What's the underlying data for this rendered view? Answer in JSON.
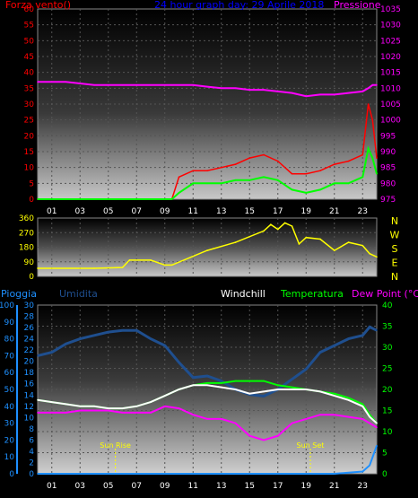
{
  "colors": {
    "wind": "#ff0000",
    "gust": "#00ff00",
    "pressure": "#ff00ff",
    "direction": "#ffff00",
    "rain": "#1e90ff",
    "humidity": "#1f4f8f",
    "windchill": "#ffffff",
    "temperature": "#00ff00",
    "dewpoint": "#ff00ff",
    "title": "#0000ff",
    "event": "#ffff00"
  },
  "chart_data": [
    {
      "type": "line",
      "title": "24 hour graph day:  29 Aprile 2018",
      "left_axis_label": "Forza vento()",
      "right_axis_label": "Pressione",
      "x_ticks": [
        "01",
        "03",
        "05",
        "07",
        "09",
        "11",
        "13",
        "15",
        "17",
        "19",
        "21",
        "23"
      ],
      "x": [
        0,
        2,
        4,
        6,
        8,
        9.5,
        10,
        11,
        12,
        13,
        14,
        15,
        16,
        17,
        18,
        19,
        20,
        21,
        22,
        23,
        23.4,
        23.7,
        24
      ],
      "left_ticks": [
        "0",
        "5",
        "10",
        "15",
        "20",
        "25",
        "30",
        "35",
        "40",
        "45",
        "50",
        "55",
        "60"
      ],
      "ylim_left": [
        0,
        60
      ],
      "right_ticks": [
        "975",
        "980",
        "985",
        "990",
        "995",
        "1000",
        "1005",
        "1010",
        "1015",
        "1020",
        "1025",
        "1030",
        "1035"
      ],
      "ylim_right": [
        975,
        1035
      ],
      "series": [
        {
          "key": "wind",
          "values": [
            0,
            0,
            0,
            0,
            0,
            0,
            7,
            9,
            9,
            10,
            11,
            13,
            14,
            12,
            8,
            8,
            9,
            11,
            12,
            14,
            30,
            25,
            13
          ]
        },
        {
          "key": "gust",
          "values": [
            0,
            0,
            0,
            0,
            0,
            0,
            2,
            5,
            5,
            5,
            6,
            6,
            7,
            6,
            3,
            2,
            3,
            5,
            5,
            7,
            16,
            13,
            8
          ]
        },
        {
          "key": "pressure",
          "values": [
            1012,
            1012,
            1011,
            1011,
            1011,
            1011,
            1011,
            1011,
            1010.5,
            1010,
            1010,
            1009.5,
            1009.5,
            1009,
            1008.5,
            1007.5,
            1008,
            1008,
            1008.5,
            1009,
            1010,
            1011,
            1011
          ]
        }
      ]
    },
    {
      "type": "line",
      "title": "",
      "x_ticks": [],
      "left_ticks": [
        "0",
        "90",
        "180",
        "270",
        "360"
      ],
      "ylim": [
        0,
        360
      ],
      "right_labels": [
        "N",
        "W",
        "S",
        "E",
        "N"
      ],
      "x": [
        0,
        4,
        6,
        6.5,
        8,
        9,
        9.5,
        12,
        14,
        16,
        16.5,
        17,
        17.5,
        18,
        18.5,
        19,
        20,
        21,
        22,
        23,
        23.5,
        24
      ],
      "series": [
        {
          "key": "direction",
          "values": [
            50,
            50,
            55,
            100,
            100,
            70,
            70,
            160,
            210,
            280,
            320,
            290,
            330,
            310,
            200,
            240,
            230,
            160,
            210,
            190,
            140,
            120
          ]
        }
      ]
    },
    {
      "type": "line",
      "title": "",
      "header_labels": {
        "rain": "Pioggia",
        "humidity": "Umidita",
        "windchill": "Windchill",
        "temperature": "Temperatura",
        "dewpoint": "Dew Point (°C)"
      },
      "x_ticks": [
        "01",
        "03",
        "05",
        "07",
        "09",
        "11",
        "13",
        "15",
        "17",
        "19",
        "21",
        "23"
      ],
      "humidity_ticks": [
        "0",
        "10",
        "20",
        "30",
        "40",
        "50",
        "60",
        "70",
        "80",
        "90",
        "100"
      ],
      "rain_ticks": [
        "0",
        "2",
        "4",
        "6",
        "8",
        "10",
        "12",
        "14",
        "16",
        "18",
        "20",
        "22",
        "24",
        "26",
        "28",
        "30"
      ],
      "temp_ticks": [
        "0",
        "5",
        "10",
        "15",
        "20",
        "25",
        "30",
        "35",
        "40"
      ],
      "ylim_temp": [
        0,
        40
      ],
      "ylim_humidity": [
        0,
        100
      ],
      "events": [
        {
          "label": "Sun Rise",
          "x": 5.5
        },
        {
          "label": "Sun Set",
          "x": 19.3
        }
      ],
      "x": [
        0,
        1,
        2,
        3,
        4,
        5,
        6,
        7,
        8,
        9,
        10,
        11,
        12,
        13,
        14,
        15,
        16,
        17,
        18,
        19,
        20,
        21,
        22,
        23,
        23.5,
        24
      ],
      "series": [
        {
          "key": "humidity",
          "values": [
            70,
            72,
            77,
            80,
            82,
            84,
            85,
            85,
            80,
            76,
            66,
            57,
            58,
            55,
            50,
            47,
            46,
            50,
            56,
            62,
            72,
            76,
            80,
            82,
            87,
            85
          ]
        },
        {
          "key": "temperature",
          "values": [
            17.5,
            17,
            16.5,
            16,
            16,
            15.5,
            15.5,
            16,
            17,
            18.5,
            20,
            21,
            21.5,
            21.5,
            22,
            22,
            22,
            21,
            20.5,
            20,
            19.5,
            19,
            18,
            16.5,
            14,
            12
          ]
        },
        {
          "key": "windchill",
          "values": [
            17.5,
            17,
            16.5,
            16,
            16,
            15.5,
            15.5,
            16,
            17,
            18.5,
            20,
            21,
            21,
            20.5,
            20,
            19,
            19.5,
            20,
            20,
            20,
            19.5,
            18.5,
            17.5,
            16,
            13.5,
            12
          ]
        },
        {
          "key": "dewpoint",
          "values": [
            14.5,
            14.5,
            14.5,
            15,
            15,
            15,
            14.5,
            14.5,
            14.5,
            16,
            15.5,
            14,
            13,
            13,
            12,
            9,
            8,
            9,
            12,
            13,
            14,
            14,
            13.5,
            13,
            12,
            11
          ]
        },
        {
          "key": "rain",
          "values": [
            0,
            0,
            0,
            0,
            0,
            0,
            0,
            0,
            0,
            0,
            0,
            0,
            0,
            0,
            0,
            0,
            0,
            0,
            0,
            0,
            0,
            0,
            0.2,
            0.4,
            1.5,
            5
          ]
        }
      ]
    }
  ]
}
